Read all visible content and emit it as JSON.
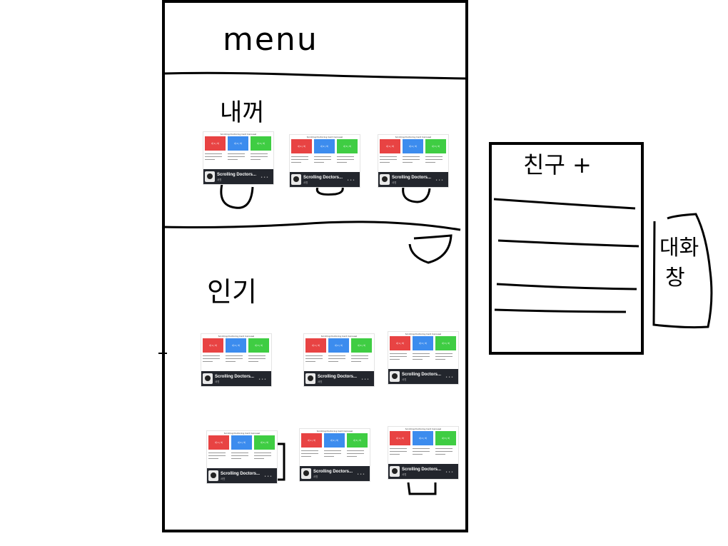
{
  "menu_label": "menu",
  "sections": {
    "mine": {
      "label": "내꺼"
    },
    "popular": {
      "label": "인기"
    }
  },
  "friends_panel": {
    "title": "친구 +",
    "items": [
      "",
      "",
      "",
      ""
    ]
  },
  "side_note": {
    "line1": "대화",
    "line2": "창"
  },
  "card": {
    "header": "Scrolling Doctoring Card Carousel",
    "tile_labels": [
      "내 1 | 비",
      "내 2 | 비",
      "내 3 | 비"
    ],
    "name": "Scrolling Doctors...",
    "sub": "사진"
  },
  "colors": {
    "red": "#e84343",
    "blue": "#3c8cee",
    "green": "#3fcd43",
    "ink": "#000000",
    "footer": "#23262d"
  }
}
